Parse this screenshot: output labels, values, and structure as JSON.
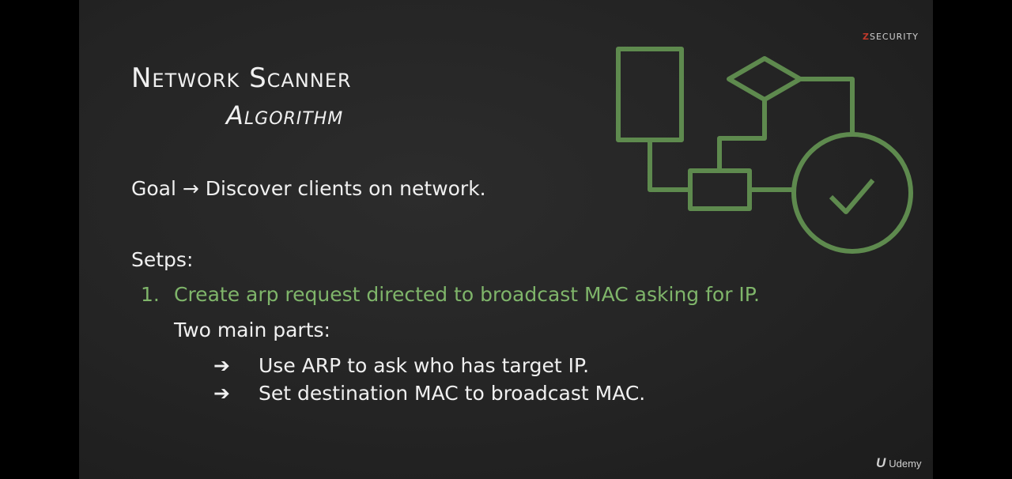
{
  "slide": {
    "title": "Network Scanner",
    "subtitle": "Algorithm",
    "goal": "Goal → Discover clients on network.",
    "steps_label": "Setps:",
    "step1": {
      "number": "1.",
      "text": "Create arp request directed to broadcast MAC asking for IP."
    },
    "parts_label": "Two main parts:",
    "bullets": [
      {
        "arrow": "➔",
        "text": "Use ARP to ask who has target IP."
      },
      {
        "arrow": "➔",
        "text": "Set destination MAC to broadcast MAC."
      }
    ]
  },
  "brand": {
    "z": "Z",
    "rest": "SECURITY"
  },
  "player": {
    "logo_icon": "U",
    "label": "Udemy"
  },
  "colors": {
    "accent_green": "#7fb56a",
    "diagram_green": "#5e8a4e",
    "background": "#262626"
  }
}
